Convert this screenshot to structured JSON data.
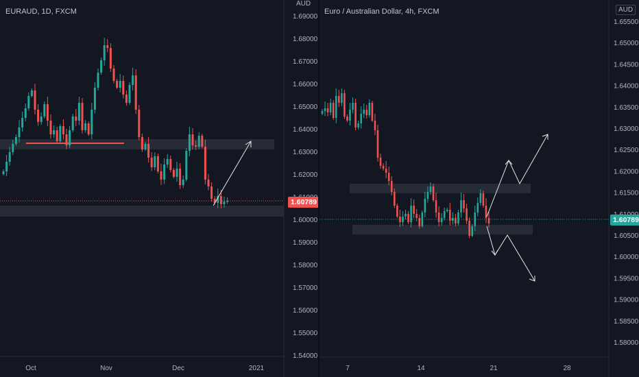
{
  "left_chart": {
    "title": "EURAUD, 1D, FXCM",
    "unit": "AUD",
    "price_axis": [
      "1.69000",
      "1.68000",
      "1.67000",
      "1.66000",
      "1.65000",
      "1.64000",
      "1.63000",
      "1.62000",
      "1.61000",
      "1.60000",
      "1.59000",
      "1.58000",
      "1.57000",
      "1.56000",
      "1.55000",
      "1.54000"
    ],
    "time_axis": [
      "Oct",
      "Nov",
      "Dec",
      "2021"
    ],
    "current_price": "1.60789",
    "colors": {
      "up": "#26a69a",
      "down": "#ef5350",
      "tag": "#ef5350"
    }
  },
  "right_chart": {
    "title": "Euro / Australian Dollar, 4h, FXCM",
    "unit": "AUD",
    "price_axis": [
      "1.65500",
      "1.65000",
      "1.64500",
      "1.64000",
      "1.63500",
      "1.63000",
      "1.62500",
      "1.62000",
      "1.61500",
      "1.61000",
      "1.60500",
      "1.60000",
      "1.59500",
      "1.59000",
      "1.58500",
      "1.58000"
    ],
    "time_axis": [
      "7",
      "14",
      "21",
      "28"
    ],
    "current_price": "1.60789",
    "colors": {
      "up": "#26a69a",
      "down": "#ef5350",
      "tag": "#26a69a"
    }
  }
}
